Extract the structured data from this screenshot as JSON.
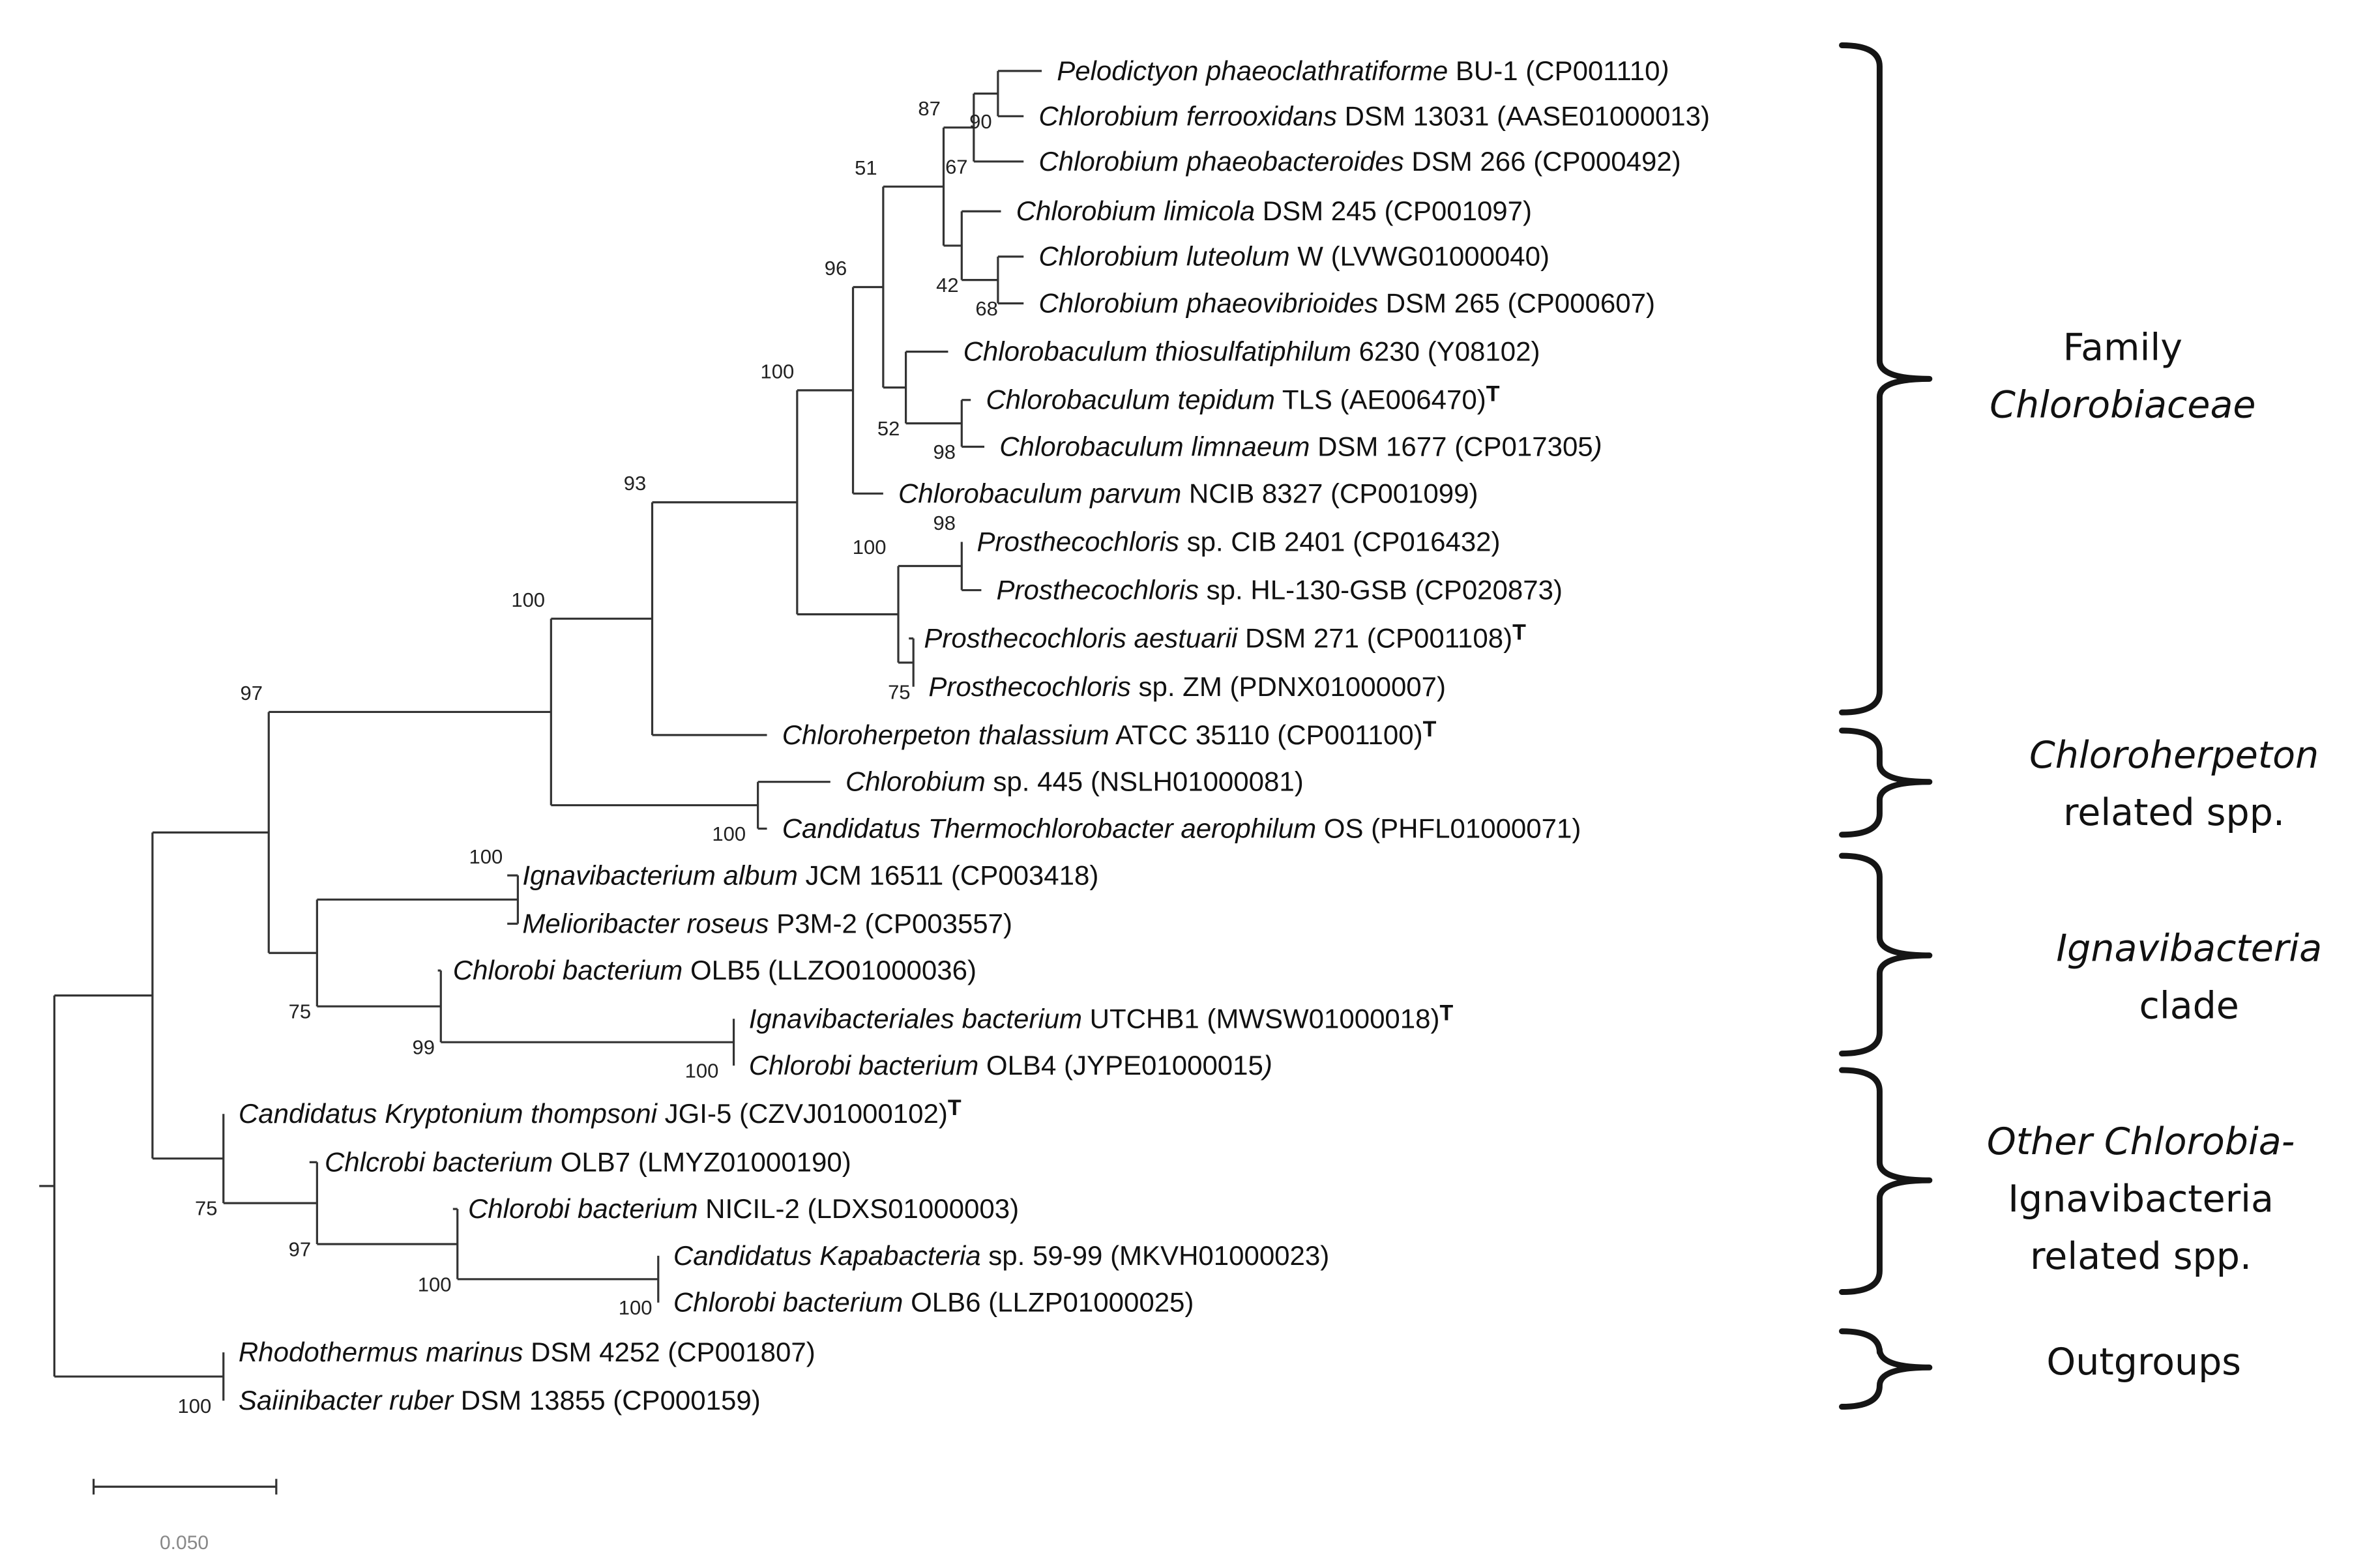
{
  "figure": {
    "kind": "phylogenetic-tree",
    "description_visible": false
  },
  "taxa": [
    {
      "id": "t1",
      "species": "Pelodictyon phaeoclathratiforme",
      "strain": "BU-1",
      "accession": "(CP001110",
      "accession_close": ")",
      "close_italic": true,
      "type_strain": false
    },
    {
      "id": "t2",
      "species": "Chlorobium ferrooxidans",
      "strain": "DSM 13031",
      "accession": "(AASE01000013)",
      "type_strain": false
    },
    {
      "id": "t3",
      "species": "Chlorobium phaeobacteroides",
      "strain": "DSM 266",
      "accession": "(CP000492)",
      "type_strain": false
    },
    {
      "id": "t4",
      "species": "Chlorobium limicola",
      "strain": "DSM 245",
      "accession": "(CP001097)",
      "type_strain": false
    },
    {
      "id": "t5",
      "species": "Chlorobium luteolum",
      "strain": "W",
      "accession": "(LVWG01000040)",
      "type_strain": false
    },
    {
      "id": "t6",
      "species": "Chlorobium phaeovibrioides",
      "strain": "DSM 265",
      "accession": "(CP000607)",
      "type_strain": false
    },
    {
      "id": "t7",
      "species": "Chlorobaculum thiosulfatiphilum",
      "strain": "6230",
      "accession": "(Y08102)",
      "type_strain": false
    },
    {
      "id": "t8",
      "species": "Chlorobaculum tepidum",
      "strain": "TLS",
      "accession": "(AE006470)",
      "type_strain": true
    },
    {
      "id": "t9",
      "species": "Chlorobaculum limnaeum",
      "strain": "DSM 1677",
      "accession": "(CP017305",
      "accession_close": ")",
      "close_italic": true,
      "type_strain": false
    },
    {
      "id": "t10",
      "species": "Chlorobaculum parvum",
      "strain": "NCIB 8327",
      "accession": "(CP001099)",
      "type_strain": false
    },
    {
      "id": "t11",
      "species": "Prosthecochloris",
      "strain": "sp. CIB 2401",
      "accession": "(CP016432)",
      "type_strain": false
    },
    {
      "id": "t12",
      "species": "Prosthecochloris",
      "strain": "sp. HL-130-GSB",
      "accession": "(CP020873)",
      "type_strain": false
    },
    {
      "id": "t13",
      "species": "Prosthecochloris aestuarii",
      "strain": "DSM 271",
      "accession": "(CP001108)",
      "type_strain": true
    },
    {
      "id": "t14",
      "species": "Prosthecochloris",
      "strain": "sp. ZM",
      "accession": "(PDNX01000007)",
      "type_strain": false
    },
    {
      "id": "t15",
      "species": "Chloroherpeton thalassium",
      "strain": "ATCC 35110",
      "accession": "(CP001100)",
      "type_strain": true
    },
    {
      "id": "t16",
      "species": "Chlorobium",
      "strain": "sp. 445",
      "accession": "(NSLH01000081)",
      "type_strain": false
    },
    {
      "id": "t17",
      "species": "Candidatus Thermochlorobacter aerophilum",
      "strain": "OS",
      "accession": "(PHFL01000071)",
      "type_strain": false
    },
    {
      "id": "t18",
      "species": "Ignavibacterium album",
      "strain": "JCM 16511",
      "accession": "(CP003418)",
      "type_strain": false
    },
    {
      "id": "t19",
      "species": "Melioribacter roseus",
      "strain": "P3M-2",
      "accession": "(CP003557)",
      "type_strain": false
    },
    {
      "id": "t20",
      "species": "Chlorobi bacterium",
      "strain": "OLB5",
      "accession": "(LLZO01000036)",
      "type_strain": false
    },
    {
      "id": "t21",
      "species": "Ignavibacteriales bacterium",
      "strain": "UTCHB1",
      "accession": "(MWSW01000018)",
      "type_strain": true
    },
    {
      "id": "t22",
      "species": "Chlorobi bacterium",
      "strain": "OLB4",
      "accession": "(JYPE01000015",
      "accession_close": ")",
      "close_italic": true,
      "type_strain": false
    },
    {
      "id": "t23",
      "species": "Candidatus Kryptonium thompsoni",
      "strain": "JGI-5",
      "accession": "(CZVJ01000102)",
      "type_strain": true
    },
    {
      "id": "t24",
      "species": "Chlcrobi bacterium",
      "strain": "OLB7",
      "accession": "(LMYZ01000190)",
      "type_strain": false
    },
    {
      "id": "t25",
      "species": "Chlorobi bacterium",
      "strain": "NICIL-2",
      "accession": "(LDXS01000003)",
      "type_strain": false
    },
    {
      "id": "t26",
      "species": "Candidatus Kapabacteria",
      "strain": "sp. 59-99",
      "accession": "(MKVH01000023)",
      "type_strain": false
    },
    {
      "id": "t27",
      "species": "Chlorobi bacterium",
      "strain": "OLB6",
      "accession": "(LLZP01000025)",
      "type_strain": false
    },
    {
      "id": "t28",
      "species": "Rhodothermus marinus",
      "strain": "DSM 4252",
      "accession": "(CP001807)",
      "type_strain": false
    },
    {
      "id": "t29",
      "species": "Saiinibacter ruber",
      "strain": "DSM 13855",
      "accession": "(CP000159)",
      "type_strain": false
    }
  ],
  "type_strain_mark": "T",
  "support_values": {
    "n_pelo_ferro": "90",
    "n_a": "67",
    "n_b": "87",
    "n_c": "51",
    "n_d": "96",
    "n_e": "100",
    "n_f": "93",
    "n_g": "100",
    "n_h": "97",
    "n_lut": "68",
    "n_lim": "42",
    "n_tep": "98",
    "n_cbac": "52",
    "n_pcib": "98",
    "n_paes": "75",
    "n_pros": "100",
    "n_chl445": "100",
    "n_ign": "100",
    "n_ubo": "100",
    "n_olb5": "99",
    "n_ignclade": "75",
    "n_olb6": "100",
    "n_nicil": "100",
    "n_olb7": "97",
    "n_kry": "75",
    "n_out": "100"
  },
  "groups": [
    {
      "id": "g1",
      "lines": [
        {
          "text": "Family",
          "italic": false
        },
        {
          "text": "Chlorobiaceae",
          "italic": true
        }
      ]
    },
    {
      "id": "g2",
      "lines": [
        {
          "text": "Chloroherpeton",
          "italic": true
        },
        {
          "text": "related spp.",
          "italic": false
        }
      ]
    },
    {
      "id": "g3",
      "lines": [
        {
          "text": "Ignavibacteria",
          "italic": true
        },
        {
          "text": "clade",
          "italic": false
        }
      ]
    },
    {
      "id": "g4",
      "lines": [
        {
          "text": "Other Chlorobia-",
          "italic": true
        },
        {
          "text": "Ignavibacteria",
          "italic": false
        },
        {
          "text": "related spp.",
          "italic": false
        }
      ]
    },
    {
      "id": "g5",
      "lines": [
        {
          "text": "Outgroups",
          "italic": false
        }
      ]
    }
  ],
  "scale_bar": {
    "label": "0.050",
    "value": 0.05
  }
}
